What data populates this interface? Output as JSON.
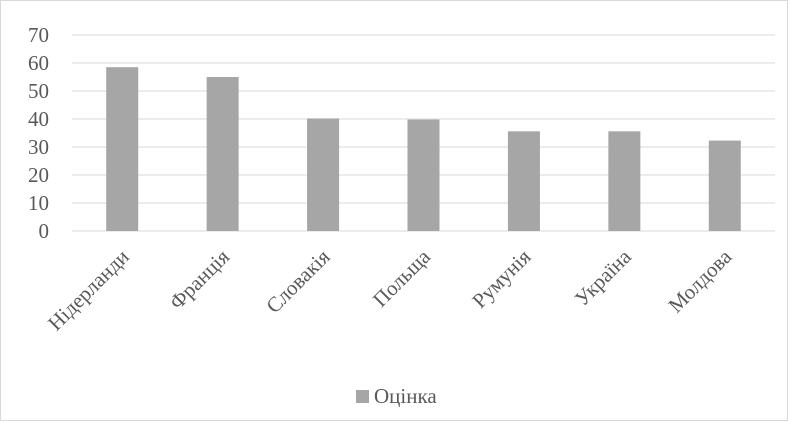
{
  "chart_data": {
    "type": "bar",
    "title": "",
    "xlabel": "",
    "ylabel": "",
    "categories": [
      "Нідерланди",
      "Франція",
      "Словакія",
      "Польща",
      "Румунія",
      "Україна",
      "Молдова"
    ],
    "series": [
      {
        "name": "Оцінка",
        "color": "#a6a6a6",
        "values": [
          58.5,
          55,
          40.2,
          39.8,
          35.6,
          35.6,
          32.3
        ]
      }
    ],
    "ylim": [
      0,
      70
    ],
    "yticks": [
      "0",
      "10",
      "20",
      "30",
      "40",
      "50",
      "60",
      "70"
    ],
    "grid": true,
    "gridColor": "#d9d9d9",
    "legend": "bottom-center"
  }
}
